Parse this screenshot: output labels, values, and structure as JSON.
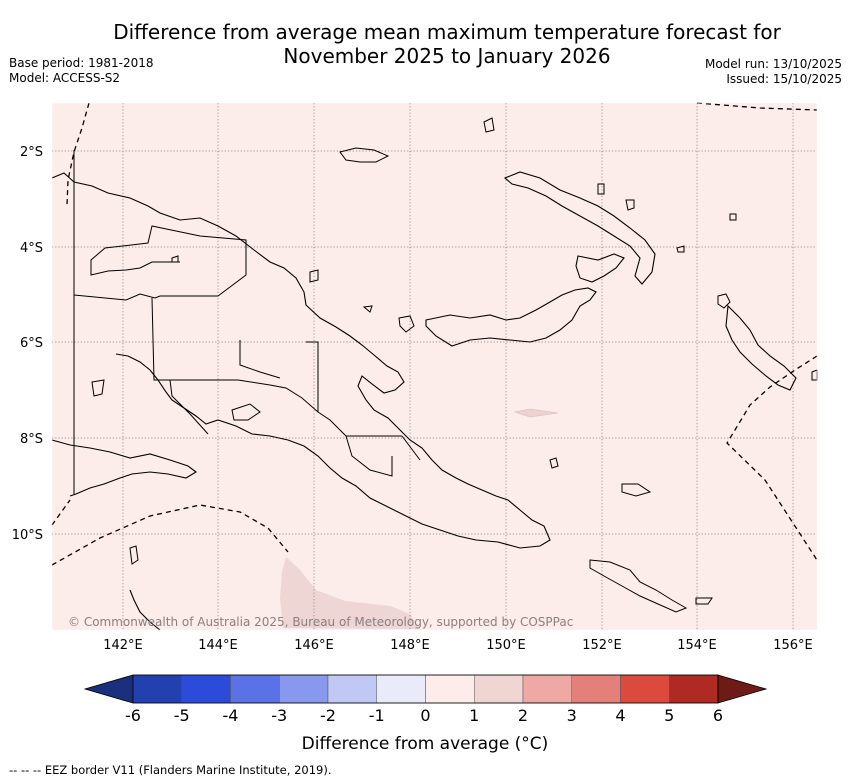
{
  "title": {
    "line1": "Difference from average mean maximum temperature forecast for",
    "line2": "November 2025 to January 2026"
  },
  "meta": {
    "base_period": "Base period: 1981-2018",
    "model": "Model: ACCESS-S2",
    "model_run": "Model run: 13/10/2025",
    "issued": "Issued: 15/10/2025"
  },
  "map": {
    "background_color": "#fcecea",
    "lat_labels": [
      "2°S",
      "4°S",
      "6°S",
      "8°S",
      "10°S"
    ],
    "lon_labels": [
      "142°E",
      "144°E",
      "146°E",
      "148°E",
      "150°E",
      "152°E",
      "154°E",
      "156°E"
    ],
    "copyright": "© Commonwealth of Australia 2025, Bureau of Meteorology, supported by COSPPac",
    "eez_border": "dashed"
  },
  "colorbar": {
    "title": "Difference from average (°C)",
    "ticks": [
      "-6",
      "-5",
      "-4",
      "-3",
      "-2",
      "-1",
      "0",
      "1",
      "2",
      "3",
      "4",
      "5",
      "6"
    ],
    "colors": [
      "#1a2f7d",
      "#2240b0",
      "#2c4bdb",
      "#5a72e6",
      "#8898ec",
      "#c0c8f3",
      "#e9ebfa",
      "#fdecea",
      "#f0d6d2",
      "#eea9a4",
      "#e4807a",
      "#dc4a3e",
      "#ae2a22",
      "#6e1a16"
    ]
  },
  "footnote": "-- -- -- EEZ border V11 (Flanders Marine Institute, 2019)."
}
